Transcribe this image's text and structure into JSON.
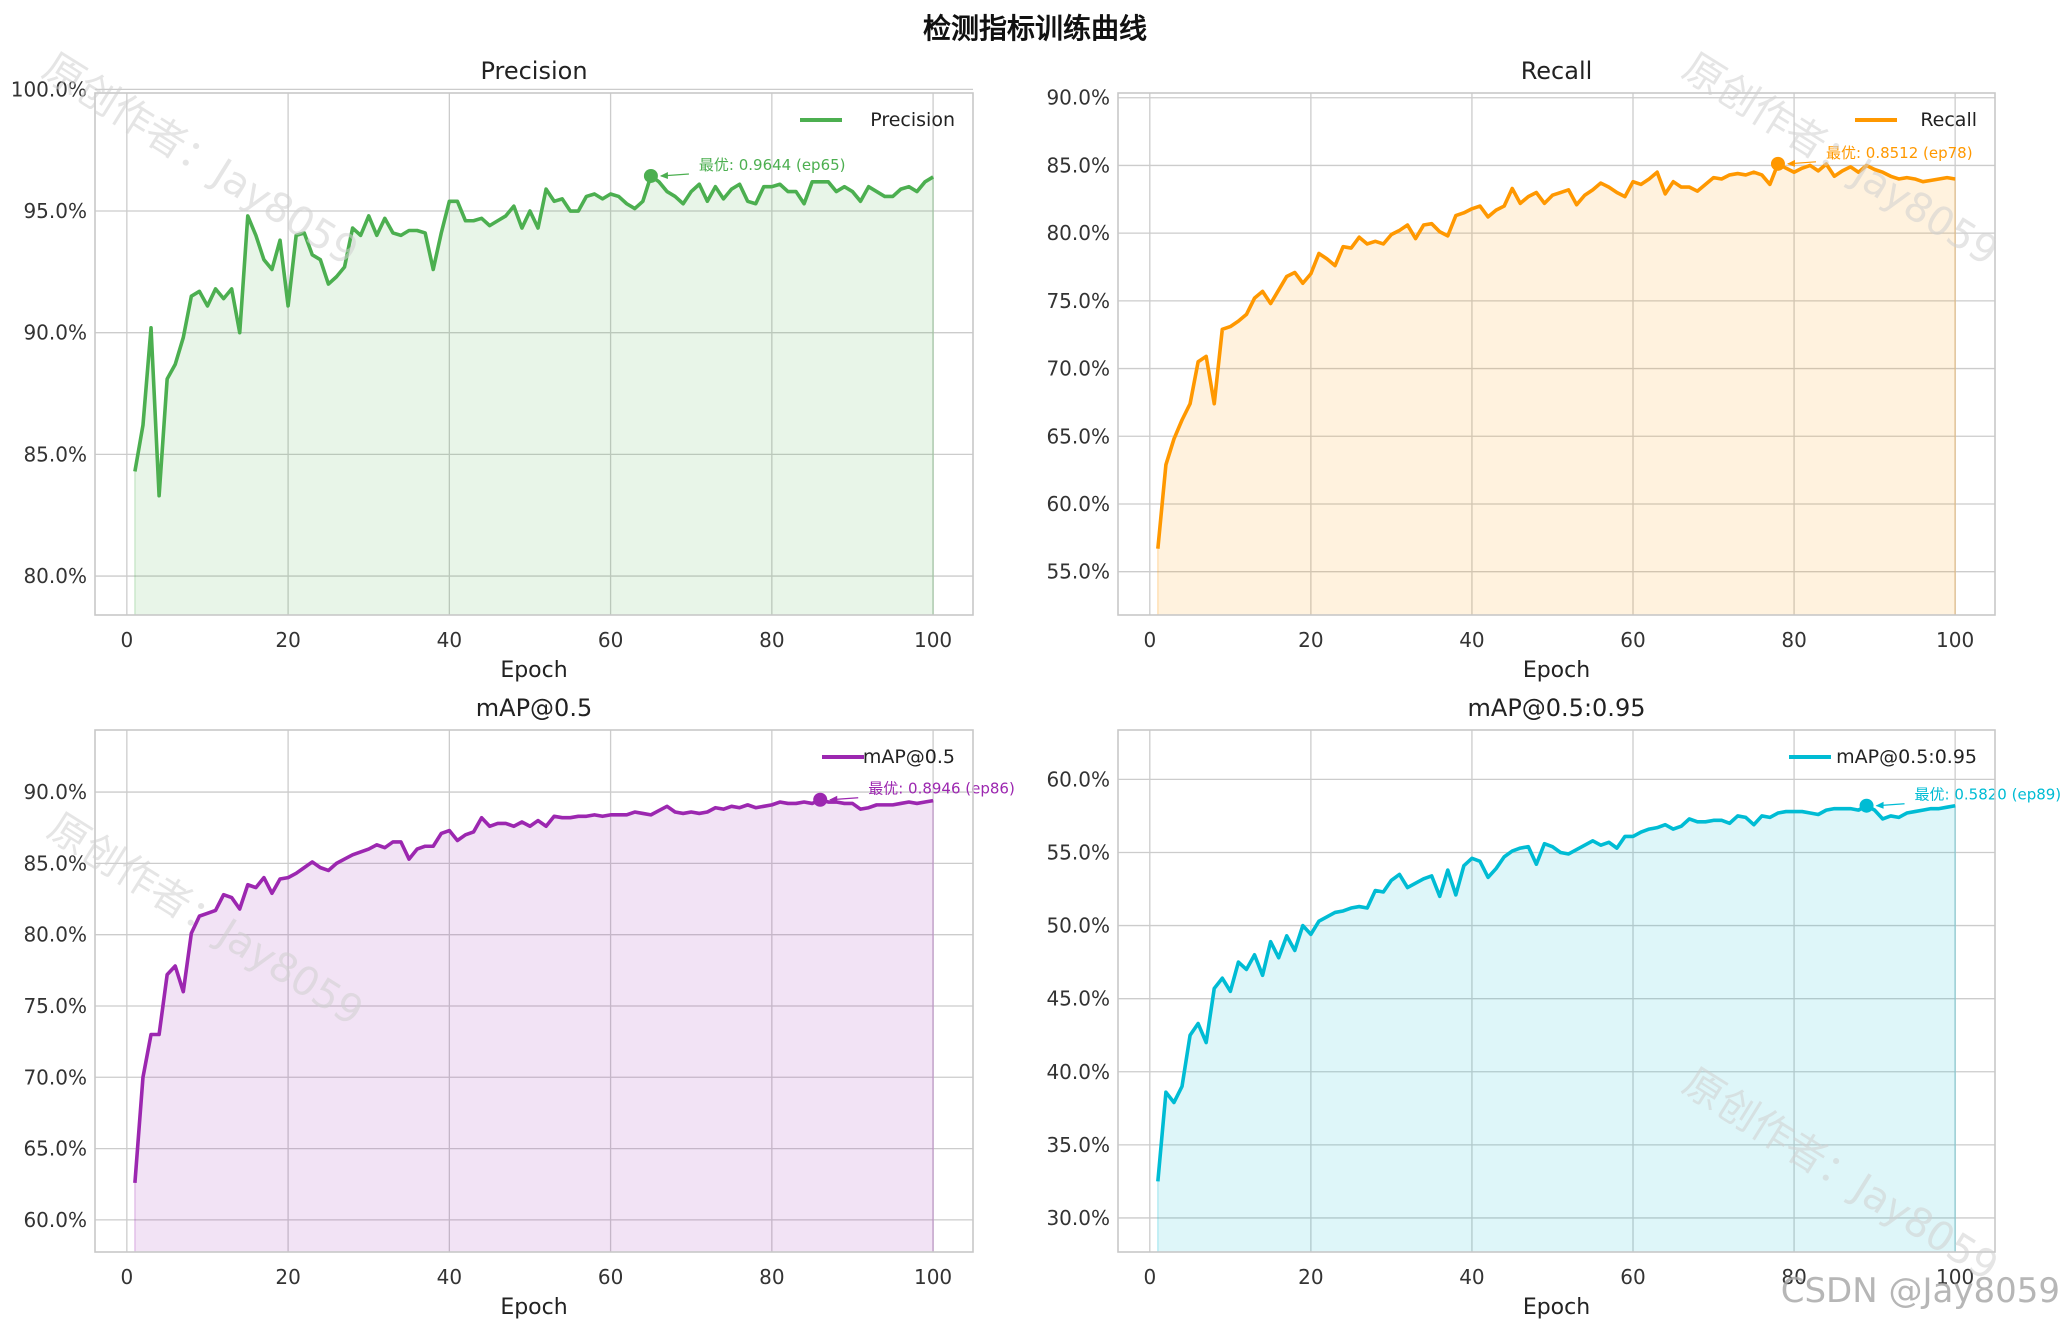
{
  "suptitle": "检测指标训练曲线",
  "watermark": "原创作者：Jay8059",
  "credit": "CSDN @Jay8059",
  "chart_data": [
    {
      "type": "line",
      "title": "Precision",
      "xlabel": "Epoch",
      "ylabel": "",
      "xlim": [
        -3.95,
        104.95
      ],
      "ylim": [
        0.784,
        0.9985
      ],
      "xticks": [
        0,
        20,
        40,
        60,
        80,
        100
      ],
      "yticks": [
        0.8,
        0.85,
        0.9,
        0.95,
        1.0
      ],
      "ytick_labels": [
        "80.0%",
        "85.0%",
        "90.0%",
        "95.0%",
        "100.0%"
      ],
      "grid": true,
      "legend_position": "upper-right",
      "fill_under": true,
      "color": "#4caf50",
      "series": [
        {
          "name": "Precision",
          "x_start": 1,
          "values": [
            0.843,
            0.862,
            0.902,
            0.833,
            0.881,
            0.887,
            0.898,
            0.915,
            0.917,
            0.911,
            0.918,
            0.914,
            0.918,
            0.9,
            0.948,
            0.94,
            0.93,
            0.926,
            0.938,
            0.911,
            0.94,
            0.941,
            0.932,
            0.93,
            0.92,
            0.923,
            0.927,
            0.943,
            0.94,
            0.948,
            0.94,
            0.947,
            0.941,
            0.94,
            0.942,
            0.942,
            0.941,
            0.926,
            0.941,
            0.954,
            0.954,
            0.946,
            0.946,
            0.947,
            0.944,
            0.946,
            0.948,
            0.952,
            0.943,
            0.95,
            0.943,
            0.959,
            0.954,
            0.955,
            0.95,
            0.95,
            0.956,
            0.957,
            0.955,
            0.957,
            0.956,
            0.953,
            0.951,
            0.954,
            0.9644,
            0.962,
            0.958,
            0.956,
            0.953,
            0.958,
            0.961,
            0.954,
            0.96,
            0.955,
            0.959,
            0.961,
            0.954,
            0.953,
            0.96,
            0.96,
            0.961,
            0.958,
            0.958,
            0.953,
            0.962,
            0.962,
            0.962,
            0.958,
            0.96,
            0.958,
            0.954,
            0.96,
            0.958,
            0.956,
            0.956,
            0.959,
            0.96,
            0.958,
            0.962,
            0.964
          ]
        }
      ],
      "best": {
        "epoch": 65,
        "value": 0.9644,
        "label": "最优: 0.9644 (ep65)"
      }
    },
    {
      "type": "line",
      "title": "Recall",
      "xlabel": "Epoch",
      "ylabel": "",
      "xlim": [
        -3.95,
        104.95
      ],
      "ylim": [
        0.518,
        0.9035
      ],
      "xticks": [
        0,
        20,
        40,
        60,
        80,
        100
      ],
      "yticks": [
        0.55,
        0.6,
        0.65,
        0.7,
        0.75,
        0.8,
        0.85,
        0.9
      ],
      "ytick_labels": [
        "55.0%",
        "60.0%",
        "65.0%",
        "70.0%",
        "75.0%",
        "80.0%",
        "85.0%",
        "90.0%"
      ],
      "grid": true,
      "legend_position": "upper-right",
      "fill_under": true,
      "color": "#ff9800",
      "series": [
        {
          "name": "Recall",
          "x_start": 1,
          "values": [
            0.567,
            0.629,
            0.648,
            0.662,
            0.674,
            0.705,
            0.709,
            0.674,
            0.729,
            0.731,
            0.735,
            0.74,
            0.752,
            0.757,
            0.748,
            0.758,
            0.768,
            0.771,
            0.763,
            0.77,
            0.785,
            0.781,
            0.776,
            0.79,
            0.789,
            0.797,
            0.792,
            0.794,
            0.792,
            0.799,
            0.802,
            0.806,
            0.796,
            0.806,
            0.807,
            0.801,
            0.798,
            0.813,
            0.815,
            0.818,
            0.82,
            0.812,
            0.817,
            0.82,
            0.833,
            0.822,
            0.827,
            0.83,
            0.822,
            0.828,
            0.83,
            0.832,
            0.821,
            0.828,
            0.832,
            0.837,
            0.834,
            0.83,
            0.827,
            0.838,
            0.836,
            0.84,
            0.845,
            0.829,
            0.838,
            0.834,
            0.834,
            0.831,
            0.836,
            0.841,
            0.84,
            0.843,
            0.844,
            0.843,
            0.845,
            0.843,
            0.836,
            0.8512,
            0.848,
            0.845,
            0.848,
            0.85,
            0.846,
            0.851,
            0.842,
            0.846,
            0.849,
            0.845,
            0.85,
            0.847,
            0.845,
            0.842,
            0.84,
            0.841,
            0.84,
            0.838,
            0.839,
            0.84,
            0.841,
            0.84
          ]
        }
      ],
      "best": {
        "epoch": 78,
        "value": 0.8512,
        "label": "最优: 0.8512 (ep78)"
      }
    },
    {
      "type": "line",
      "title": "mAP@0.5",
      "xlabel": "Epoch",
      "ylabel": "",
      "xlim": [
        -3.95,
        104.95
      ],
      "ylim": [
        0.5775,
        0.9435
      ],
      "xticks": [
        0,
        20,
        40,
        60,
        80,
        100
      ],
      "yticks": [
        0.6,
        0.65,
        0.7,
        0.75,
        0.8,
        0.85,
        0.9
      ],
      "ytick_labels": [
        "60.0%",
        "65.0%",
        "70.0%",
        "75.0%",
        "80.0%",
        "85.0%",
        "90.0%"
      ],
      "grid": true,
      "legend_position": "upper-right",
      "fill_under": true,
      "color": "#9c27b0",
      "series": [
        {
          "name": "mAP@0.5",
          "x_start": 1,
          "values": [
            0.626,
            0.7,
            0.73,
            0.73,
            0.772,
            0.778,
            0.76,
            0.801,
            0.813,
            0.815,
            0.817,
            0.828,
            0.826,
            0.818,
            0.835,
            0.833,
            0.84,
            0.829,
            0.839,
            0.84,
            0.843,
            0.847,
            0.851,
            0.847,
            0.845,
            0.85,
            0.853,
            0.856,
            0.858,
            0.86,
            0.863,
            0.861,
            0.865,
            0.865,
            0.853,
            0.86,
            0.862,
            0.862,
            0.871,
            0.873,
            0.866,
            0.87,
            0.872,
            0.882,
            0.876,
            0.878,
            0.878,
            0.876,
            0.879,
            0.876,
            0.88,
            0.876,
            0.883,
            0.882,
            0.882,
            0.883,
            0.883,
            0.884,
            0.883,
            0.884,
            0.884,
            0.884,
            0.886,
            0.885,
            0.884,
            0.887,
            0.89,
            0.886,
            0.885,
            0.886,
            0.885,
            0.886,
            0.889,
            0.888,
            0.89,
            0.889,
            0.891,
            0.889,
            0.89,
            0.891,
            0.893,
            0.892,
            0.892,
            0.893,
            0.892,
            0.8946,
            0.893,
            0.893,
            0.892,
            0.892,
            0.888,
            0.889,
            0.891,
            0.891,
            0.891,
            0.892,
            0.893,
            0.892,
            0.893,
            0.894
          ]
        }
      ],
      "best": {
        "epoch": 86,
        "value": 0.8946,
        "label": "最优: 0.8946 (ep86)"
      }
    },
    {
      "type": "line",
      "title": "mAP@0.5:0.95",
      "xlabel": "Epoch",
      "ylabel": "",
      "xlim": [
        -3.95,
        104.95
      ],
      "ylim": [
        0.2767,
        0.6338
      ],
      "xticks": [
        0,
        20,
        40,
        60,
        80,
        100
      ],
      "yticks": [
        0.3,
        0.35,
        0.4,
        0.45,
        0.5,
        0.55,
        0.6
      ],
      "ytick_labels": [
        "30.0%",
        "35.0%",
        "40.0%",
        "45.0%",
        "50.0%",
        "55.0%",
        "60.0%"
      ],
      "grid": true,
      "legend_position": "upper-right",
      "fill_under": true,
      "color": "#00bcd4",
      "series": [
        {
          "name": "mAP@0.5:0.95",
          "x_start": 1,
          "values": [
            0.325,
            0.386,
            0.379,
            0.39,
            0.425,
            0.433,
            0.42,
            0.457,
            0.464,
            0.455,
            0.475,
            0.47,
            0.48,
            0.466,
            0.489,
            0.478,
            0.493,
            0.483,
            0.5,
            0.494,
            0.503,
            0.506,
            0.509,
            0.51,
            0.512,
            0.513,
            0.512,
            0.524,
            0.523,
            0.531,
            0.535,
            0.526,
            0.529,
            0.532,
            0.534,
            0.52,
            0.538,
            0.521,
            0.541,
            0.546,
            0.544,
            0.533,
            0.539,
            0.547,
            0.551,
            0.553,
            0.554,
            0.542,
            0.556,
            0.554,
            0.55,
            0.549,
            0.552,
            0.555,
            0.558,
            0.555,
            0.557,
            0.553,
            0.561,
            0.561,
            0.564,
            0.566,
            0.567,
            0.569,
            0.566,
            0.568,
            0.573,
            0.571,
            0.571,
            0.572,
            0.572,
            0.57,
            0.575,
            0.574,
            0.569,
            0.575,
            0.574,
            0.577,
            0.578,
            0.578,
            0.578,
            0.577,
            0.576,
            0.579,
            0.58,
            0.58,
            0.58,
            0.579,
            0.582,
            0.579,
            0.573,
            0.575,
            0.574,
            0.577,
            0.578,
            0.579,
            0.58,
            0.58,
            0.581,
            0.582
          ]
        }
      ],
      "best": {
        "epoch": 89,
        "value": 0.582,
        "label": "最优: 0.5820 (ep89)"
      }
    }
  ]
}
